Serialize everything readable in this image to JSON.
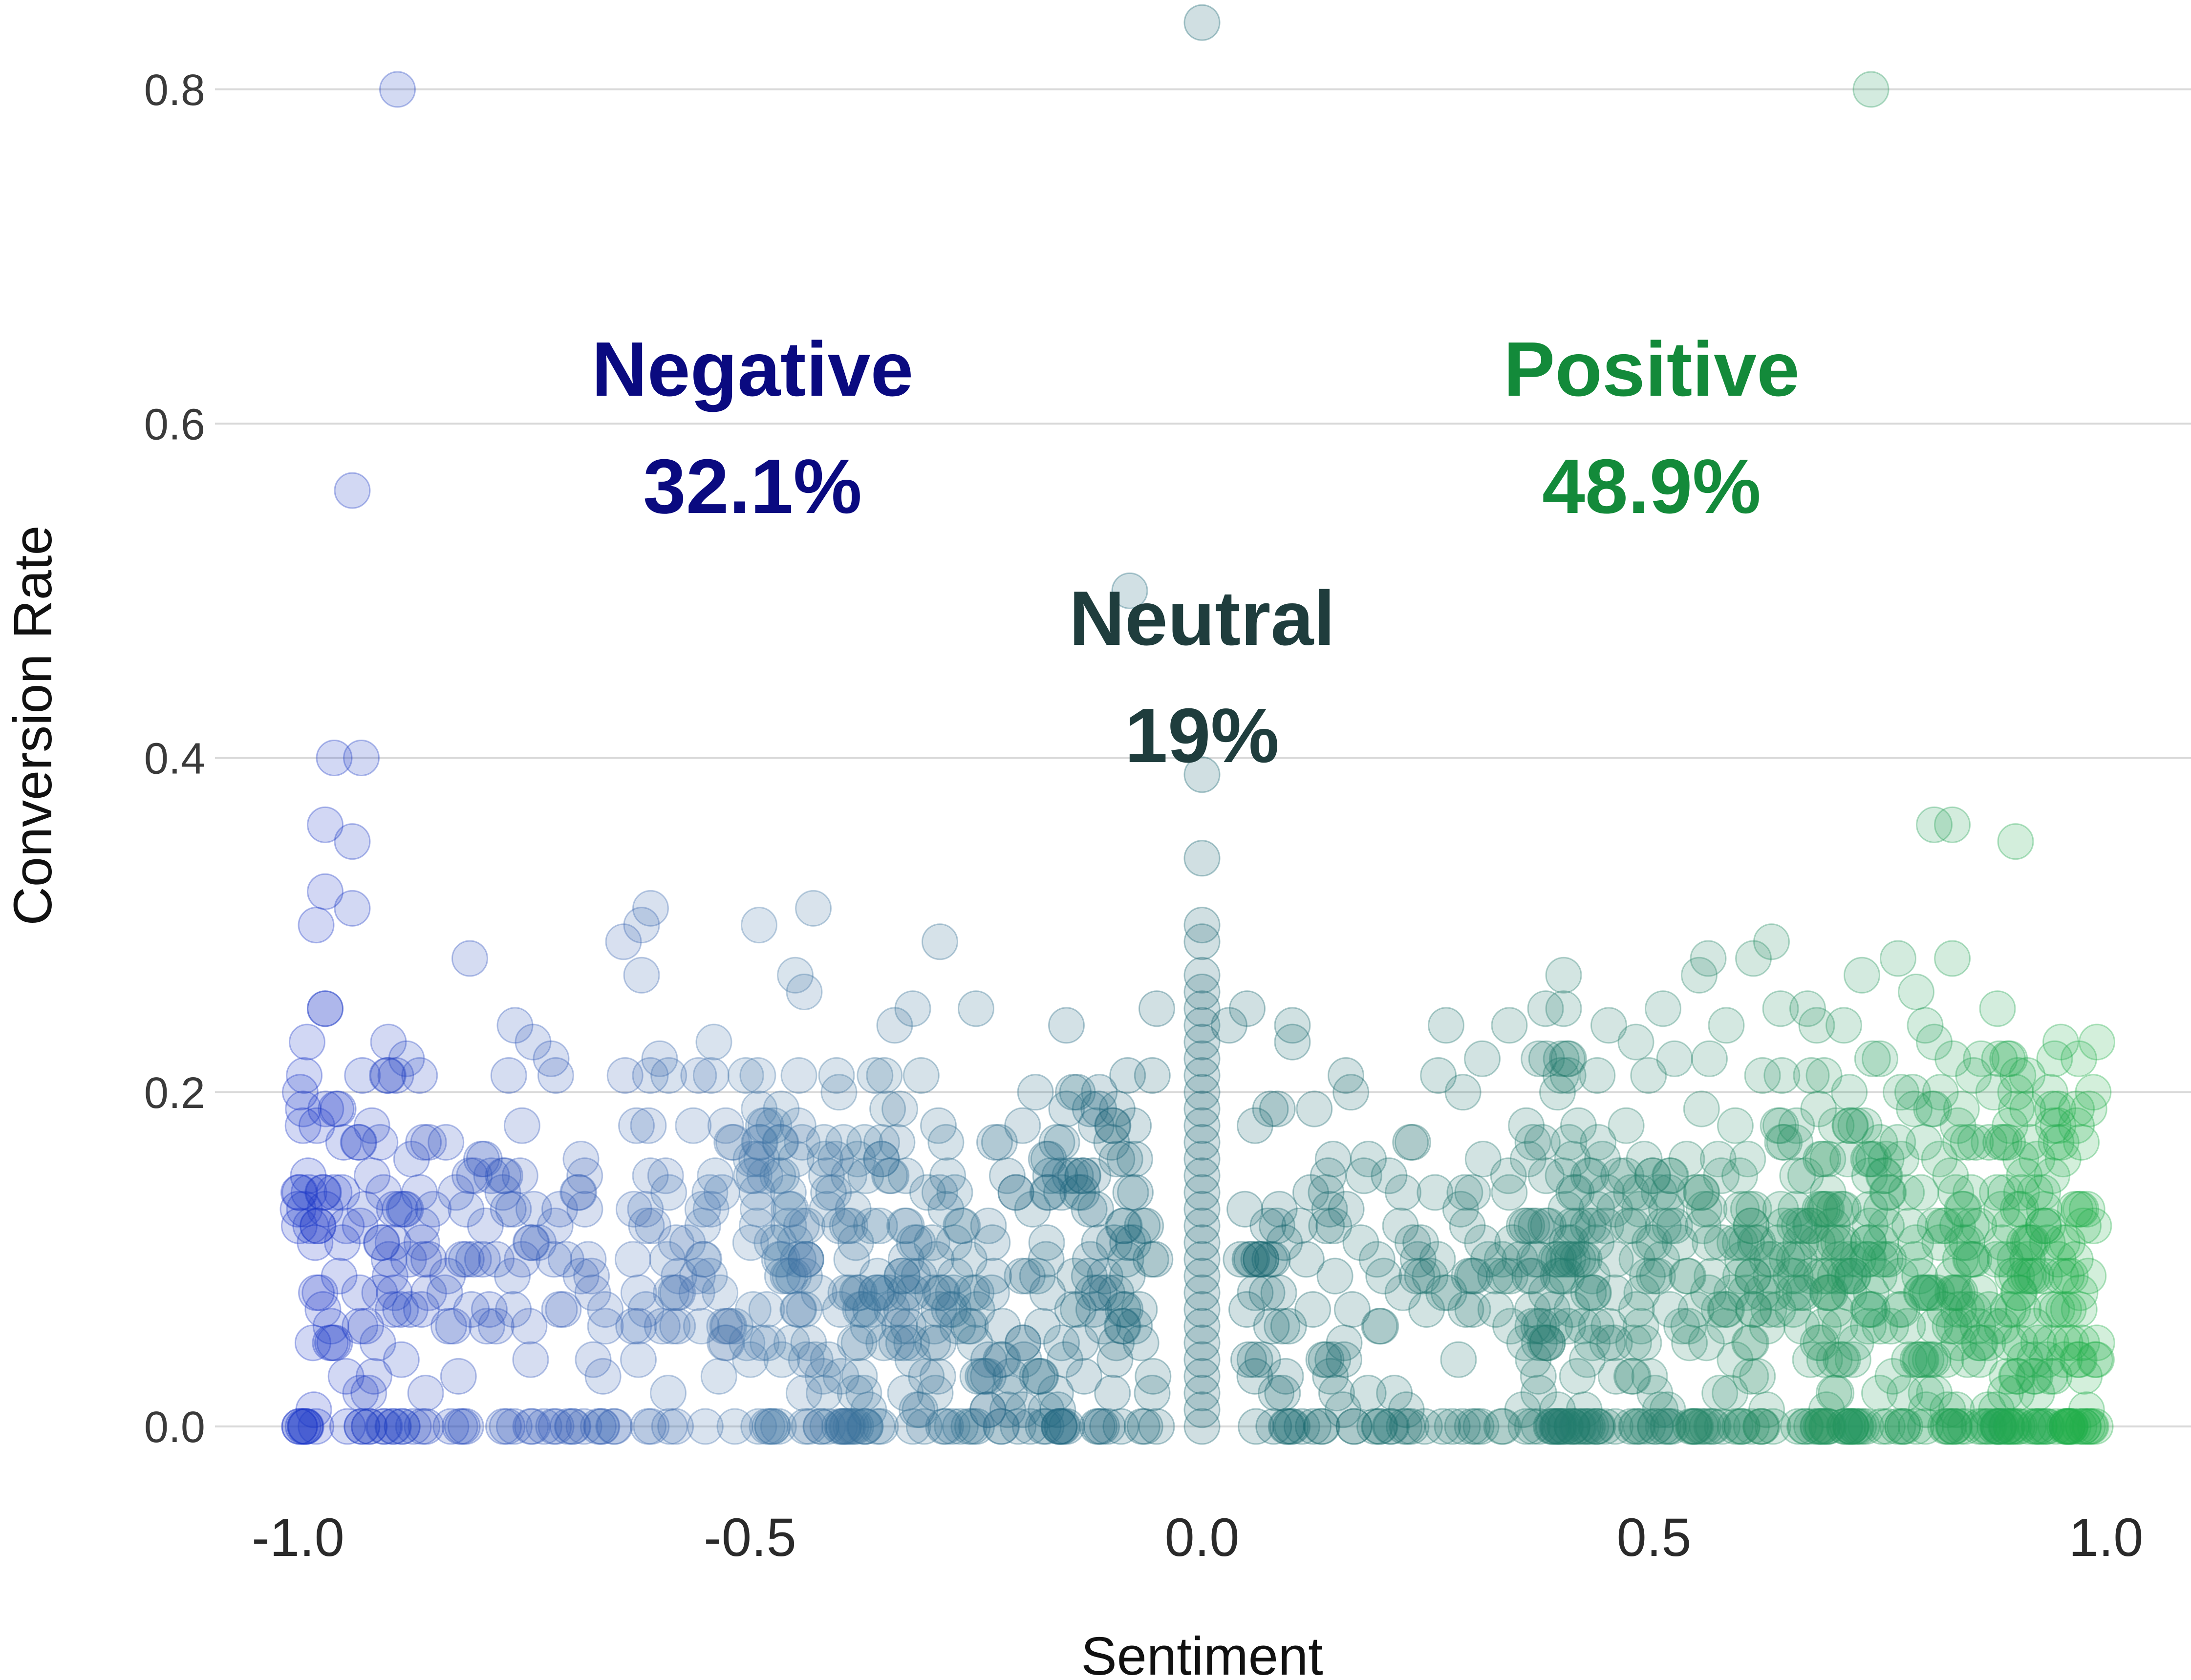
{
  "chart_data": {
    "type": "scatter",
    "title": "",
    "xlabel": "Sentiment",
    "ylabel": "Conversion Rate",
    "xlim": [
      -1.0,
      1.0
    ],
    "ylim": [
      0.0,
      0.8
    ],
    "x_ticks": [
      "-1.0",
      "-0.5",
      "0.0",
      "0.5",
      "1.0"
    ],
    "y_ticks": [
      "0.0",
      "0.2",
      "0.4",
      "0.6",
      "0.8"
    ],
    "grid": "horizontal",
    "legend": "none",
    "annotations": [
      {
        "label": "Negative",
        "value": "32.1%",
        "color": "#0a0a80"
      },
      {
        "label": "Positive",
        "value": "48.9%",
        "color": "#138a3a"
      },
      {
        "label": "Neutral",
        "value": "19%",
        "color": "#1f3d3d"
      }
    ],
    "colors": {
      "negative": "#1a35c9",
      "neutral": "#12606e",
      "positive": "#22b24a"
    },
    "points": [
      [
        -0.89,
        0.8
      ],
      [
        0.0,
        0.84
      ],
      [
        0.74,
        0.8
      ],
      [
        -0.94,
        0.56
      ],
      [
        -0.08,
        0.5
      ],
      [
        -0.96,
        0.4
      ],
      [
        -0.93,
        0.4
      ],
      [
        -0.97,
        0.36
      ],
      [
        -0.94,
        0.35
      ],
      [
        -0.97,
        0.32
      ],
      [
        -0.94,
        0.31
      ],
      [
        -0.98,
        0.3
      ],
      [
        0.81,
        0.36
      ],
      [
        0.83,
        0.36
      ],
      [
        0.9,
        0.35
      ],
      [
        0.0,
        0.39
      ],
      [
        0.0,
        0.34
      ],
      [
        0.0,
        0.3
      ],
      [
        0.0,
        0.29
      ],
      [
        0.0,
        0.27
      ],
      [
        0.0,
        0.26
      ],
      [
        0.0,
        0.25
      ],
      [
        0.0,
        0.24
      ],
      [
        0.0,
        0.23
      ],
      [
        0.0,
        0.22
      ],
      [
        0.0,
        0.21
      ],
      [
        0.0,
        0.2
      ],
      [
        0.0,
        0.19
      ],
      [
        0.0,
        0.18
      ],
      [
        0.0,
        0.17
      ],
      [
        0.0,
        0.16
      ],
      [
        0.0,
        0.15
      ],
      [
        0.0,
        0.14
      ],
      [
        0.0,
        0.13
      ],
      [
        0.0,
        0.12
      ],
      [
        0.0,
        0.11
      ],
      [
        0.0,
        0.1
      ],
      [
        0.0,
        0.09
      ],
      [
        0.0,
        0.08
      ],
      [
        0.0,
        0.07
      ],
      [
        0.0,
        0.06
      ],
      [
        0.0,
        0.05
      ],
      [
        0.0,
        0.04
      ],
      [
        0.0,
        0.03
      ],
      [
        0.0,
        0.02
      ],
      [
        0.0,
        0.01
      ],
      [
        0.0,
        0.0
      ],
      [
        -0.61,
        0.31
      ],
      [
        -0.43,
        0.31
      ],
      [
        -0.49,
        0.3
      ],
      [
        -0.62,
        0.3
      ],
      [
        -0.64,
        0.29
      ],
      [
        -0.29,
        0.29
      ],
      [
        -0.45,
        0.27
      ],
      [
        -0.62,
        0.27
      ],
      [
        -0.44,
        0.26
      ],
      [
        -0.81,
        0.28
      ],
      [
        -0.97,
        0.25
      ],
      [
        -0.97,
        0.25
      ],
      [
        -0.34,
        0.24
      ],
      [
        -0.32,
        0.25
      ],
      [
        -0.25,
        0.25
      ],
      [
        -0.15,
        0.24
      ],
      [
        -0.05,
        0.25
      ],
      [
        -0.76,
        0.24
      ],
      [
        -0.74,
        0.23
      ],
      [
        -0.9,
        0.23
      ],
      [
        -0.99,
        0.23
      ],
      [
        -0.88,
        0.22
      ],
      [
        -0.6,
        0.22
      ],
      [
        -0.54,
        0.23
      ],
      [
        -0.72,
        0.22
      ],
      [
        0.05,
        0.25
      ],
      [
        0.03,
        0.24
      ],
      [
        0.1,
        0.24
      ],
      [
        0.1,
        0.23
      ],
      [
        0.27,
        0.24
      ],
      [
        0.38,
        0.25
      ],
      [
        0.4,
        0.25
      ],
      [
        0.45,
        0.24
      ],
      [
        0.48,
        0.23
      ],
      [
        0.51,
        0.25
      ],
      [
        0.55,
        0.27
      ],
      [
        0.56,
        0.28
      ],
      [
        0.58,
        0.24
      ],
      [
        0.61,
        0.28
      ],
      [
        0.63,
        0.29
      ],
      [
        0.64,
        0.25
      ],
      [
        0.67,
        0.25
      ],
      [
        0.68,
        0.24
      ],
      [
        0.71,
        0.24
      ],
      [
        0.73,
        0.27
      ],
      [
        0.75,
        0.22
      ],
      [
        0.77,
        0.28
      ],
      [
        0.79,
        0.26
      ],
      [
        0.8,
        0.24
      ],
      [
        0.81,
        0.23
      ],
      [
        0.83,
        0.28
      ],
      [
        0.88,
        0.25
      ],
      [
        0.9,
        0.2
      ],
      [
        0.95,
        0.23
      ],
      [
        0.97,
        0.22
      ],
      [
        0.99,
        0.23
      ],
      [
        0.4,
        0.27
      ],
      [
        0.34,
        0.24
      ],
      [
        0.31,
        0.22
      ]
    ],
    "cloud_seed": 7
  }
}
